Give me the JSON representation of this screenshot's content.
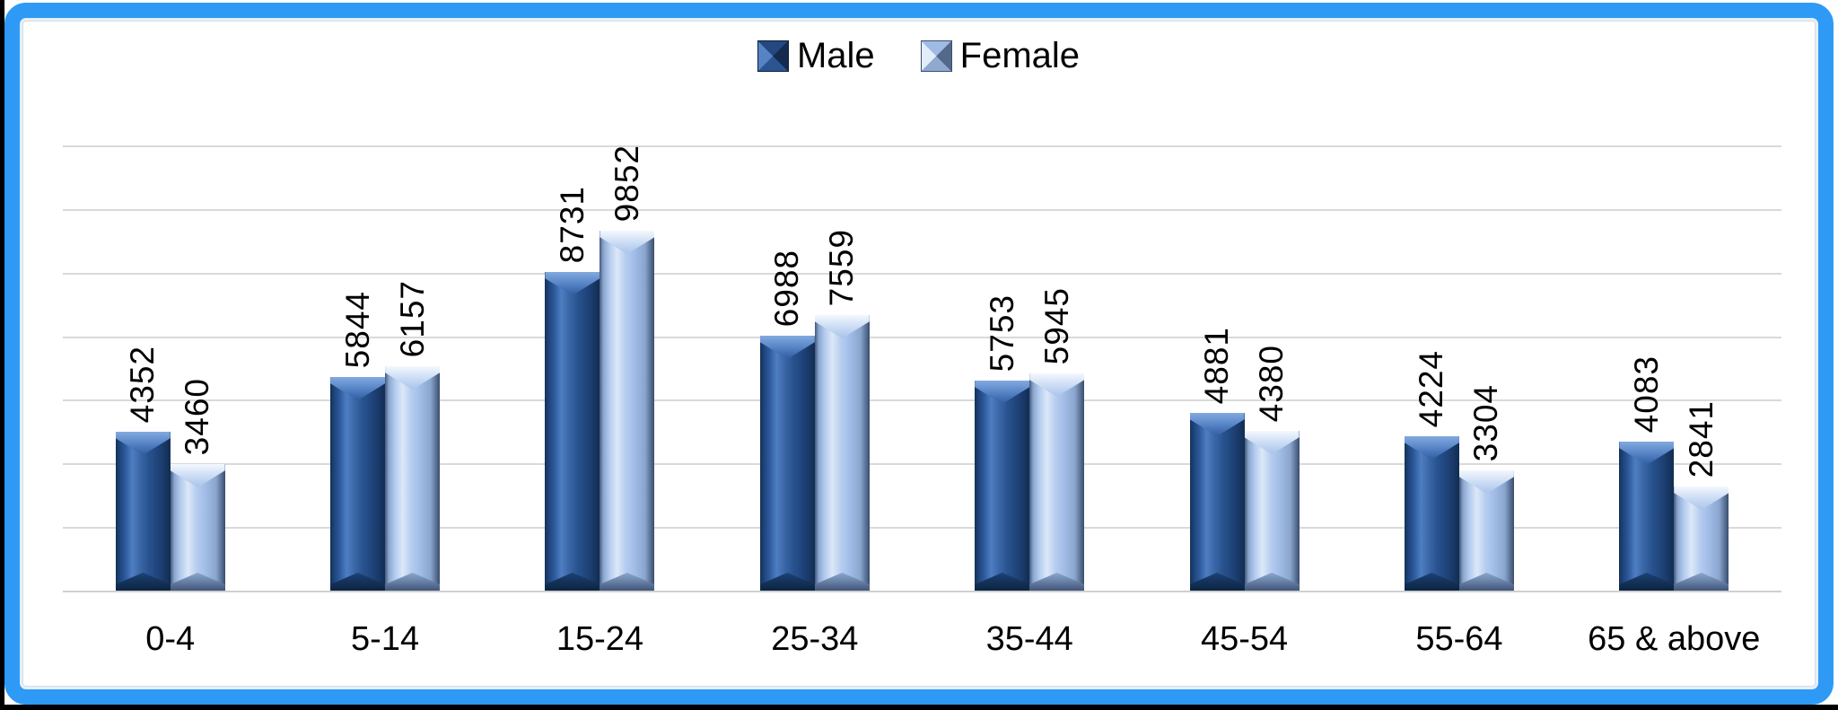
{
  "frame": {
    "border_color": "#2E9AF6",
    "background": "#FFFFFF"
  },
  "legend": {
    "position": "top-center",
    "items": [
      {
        "label": "Male",
        "color": "#24508F"
      },
      {
        "label": "Female",
        "color": "#A9C4EA"
      }
    ]
  },
  "chart_data": {
    "type": "bar",
    "title": "",
    "xlabel": "",
    "ylabel": "",
    "categories": [
      "0-4",
      "5-14",
      "15-24",
      "25-34",
      "35-44",
      "45-54",
      "55-64",
      "65 & above"
    ],
    "series": [
      {
        "name": "Male",
        "color": "#24508F",
        "values": [
          4352,
          5844,
          8731,
          6988,
          5753,
          4881,
          4224,
          4083
        ]
      },
      {
        "name": "Female",
        "color": "#A9C4EA",
        "values": [
          3460,
          6157,
          9852,
          7559,
          5945,
          4380,
          3304,
          2841
        ]
      }
    ],
    "ylim": [
      0,
      12200
    ],
    "grid": "horizontal",
    "gridline_count": 8,
    "legend_position": "top-center",
    "bar_value_labels": "rotated-90",
    "bar_style": "3d-bevel"
  }
}
